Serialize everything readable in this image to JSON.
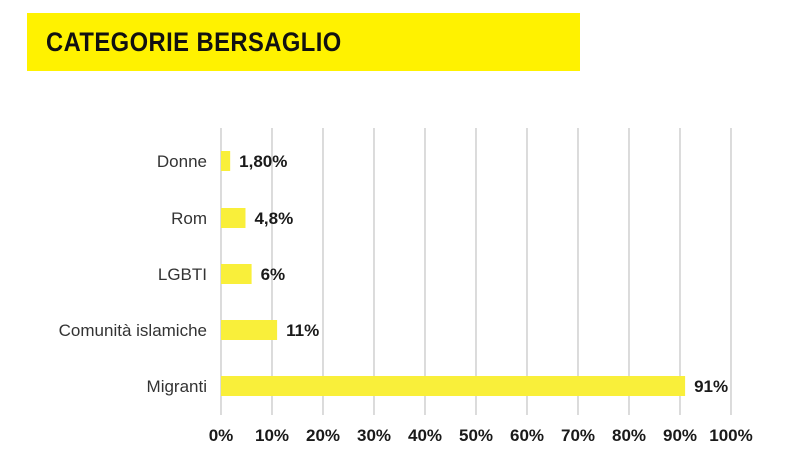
{
  "title": "CATEGORIE BERSAGLIO",
  "colors": {
    "banner": "#fff200",
    "bar": "#f9ef3a",
    "grid": "#c8c8c8",
    "text": "#1a1a1a"
  },
  "chart_data": {
    "type": "bar",
    "orientation": "horizontal",
    "title": "CATEGORIE BERSAGLIO",
    "categories": [
      "Donne",
      "Rom",
      "LGBTI",
      "Comunità islamiche",
      "Migranti"
    ],
    "values": [
      1.8,
      4.8,
      6,
      11,
      91
    ],
    "value_labels": [
      "1,80%",
      "4,8%",
      "6%",
      "11%",
      "91%"
    ],
    "xlim": [
      0,
      100
    ],
    "xticks": [
      "0%",
      "10%",
      "20%",
      "30%",
      "40%",
      "50%",
      "60%",
      "70%",
      "80%",
      "90%",
      "100%"
    ],
    "grid": "vertical",
    "legend": "none"
  }
}
